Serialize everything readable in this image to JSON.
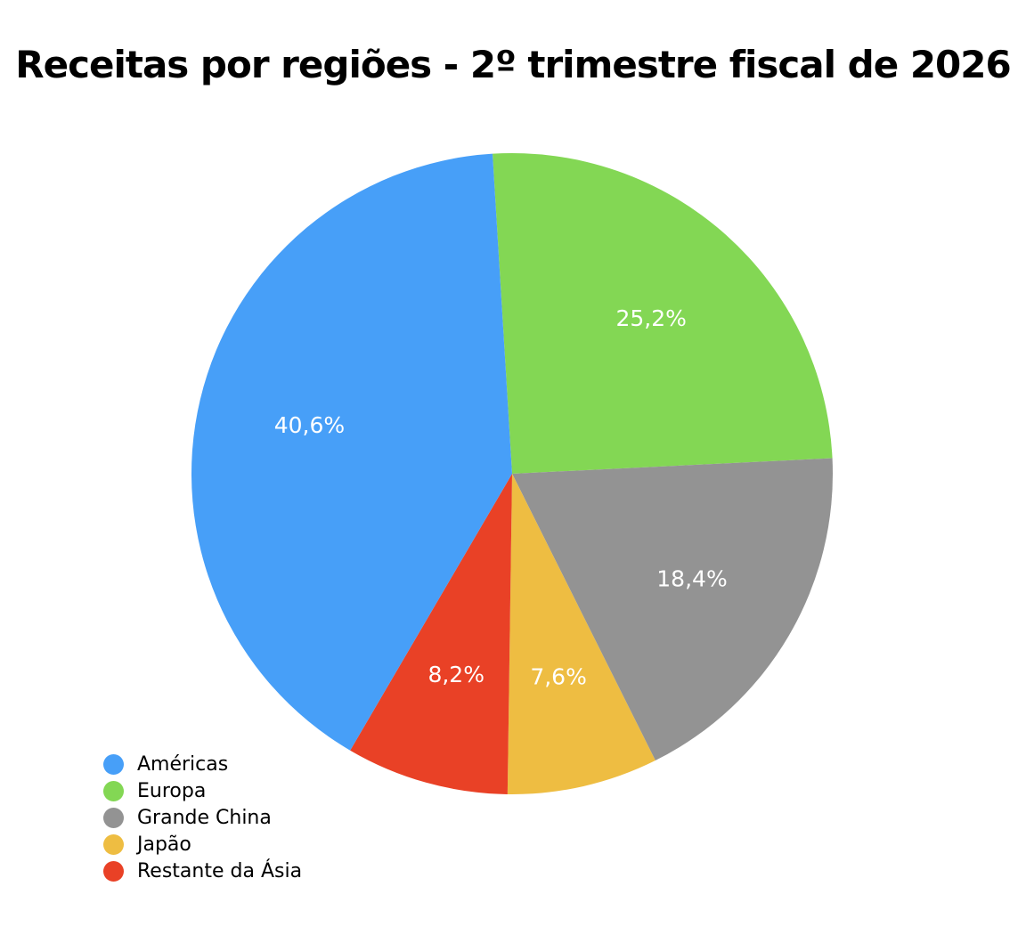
{
  "chart_data": {
    "type": "pie",
    "title": "Receitas por regiões - 2º trimestre fiscal de 2026",
    "categories": [
      "Américas",
      "Europa",
      "Grande China",
      "Japão",
      "Restante da Ásia"
    ],
    "values": [
      40.6,
      25.2,
      18.4,
      7.6,
      8.2
    ],
    "value_labels": [
      "40,6%",
      "25,2%",
      "18,4%",
      "7,6%",
      "8,2%"
    ],
    "colors": [
      "#479FF8",
      "#83D754",
      "#939393",
      "#EEBD42",
      "#E94126"
    ],
    "draw_order": [
      "Europa",
      "Grande China",
      "Japão",
      "Restante da Ásia",
      "Américas"
    ],
    "legend_position": "bottom-left"
  }
}
